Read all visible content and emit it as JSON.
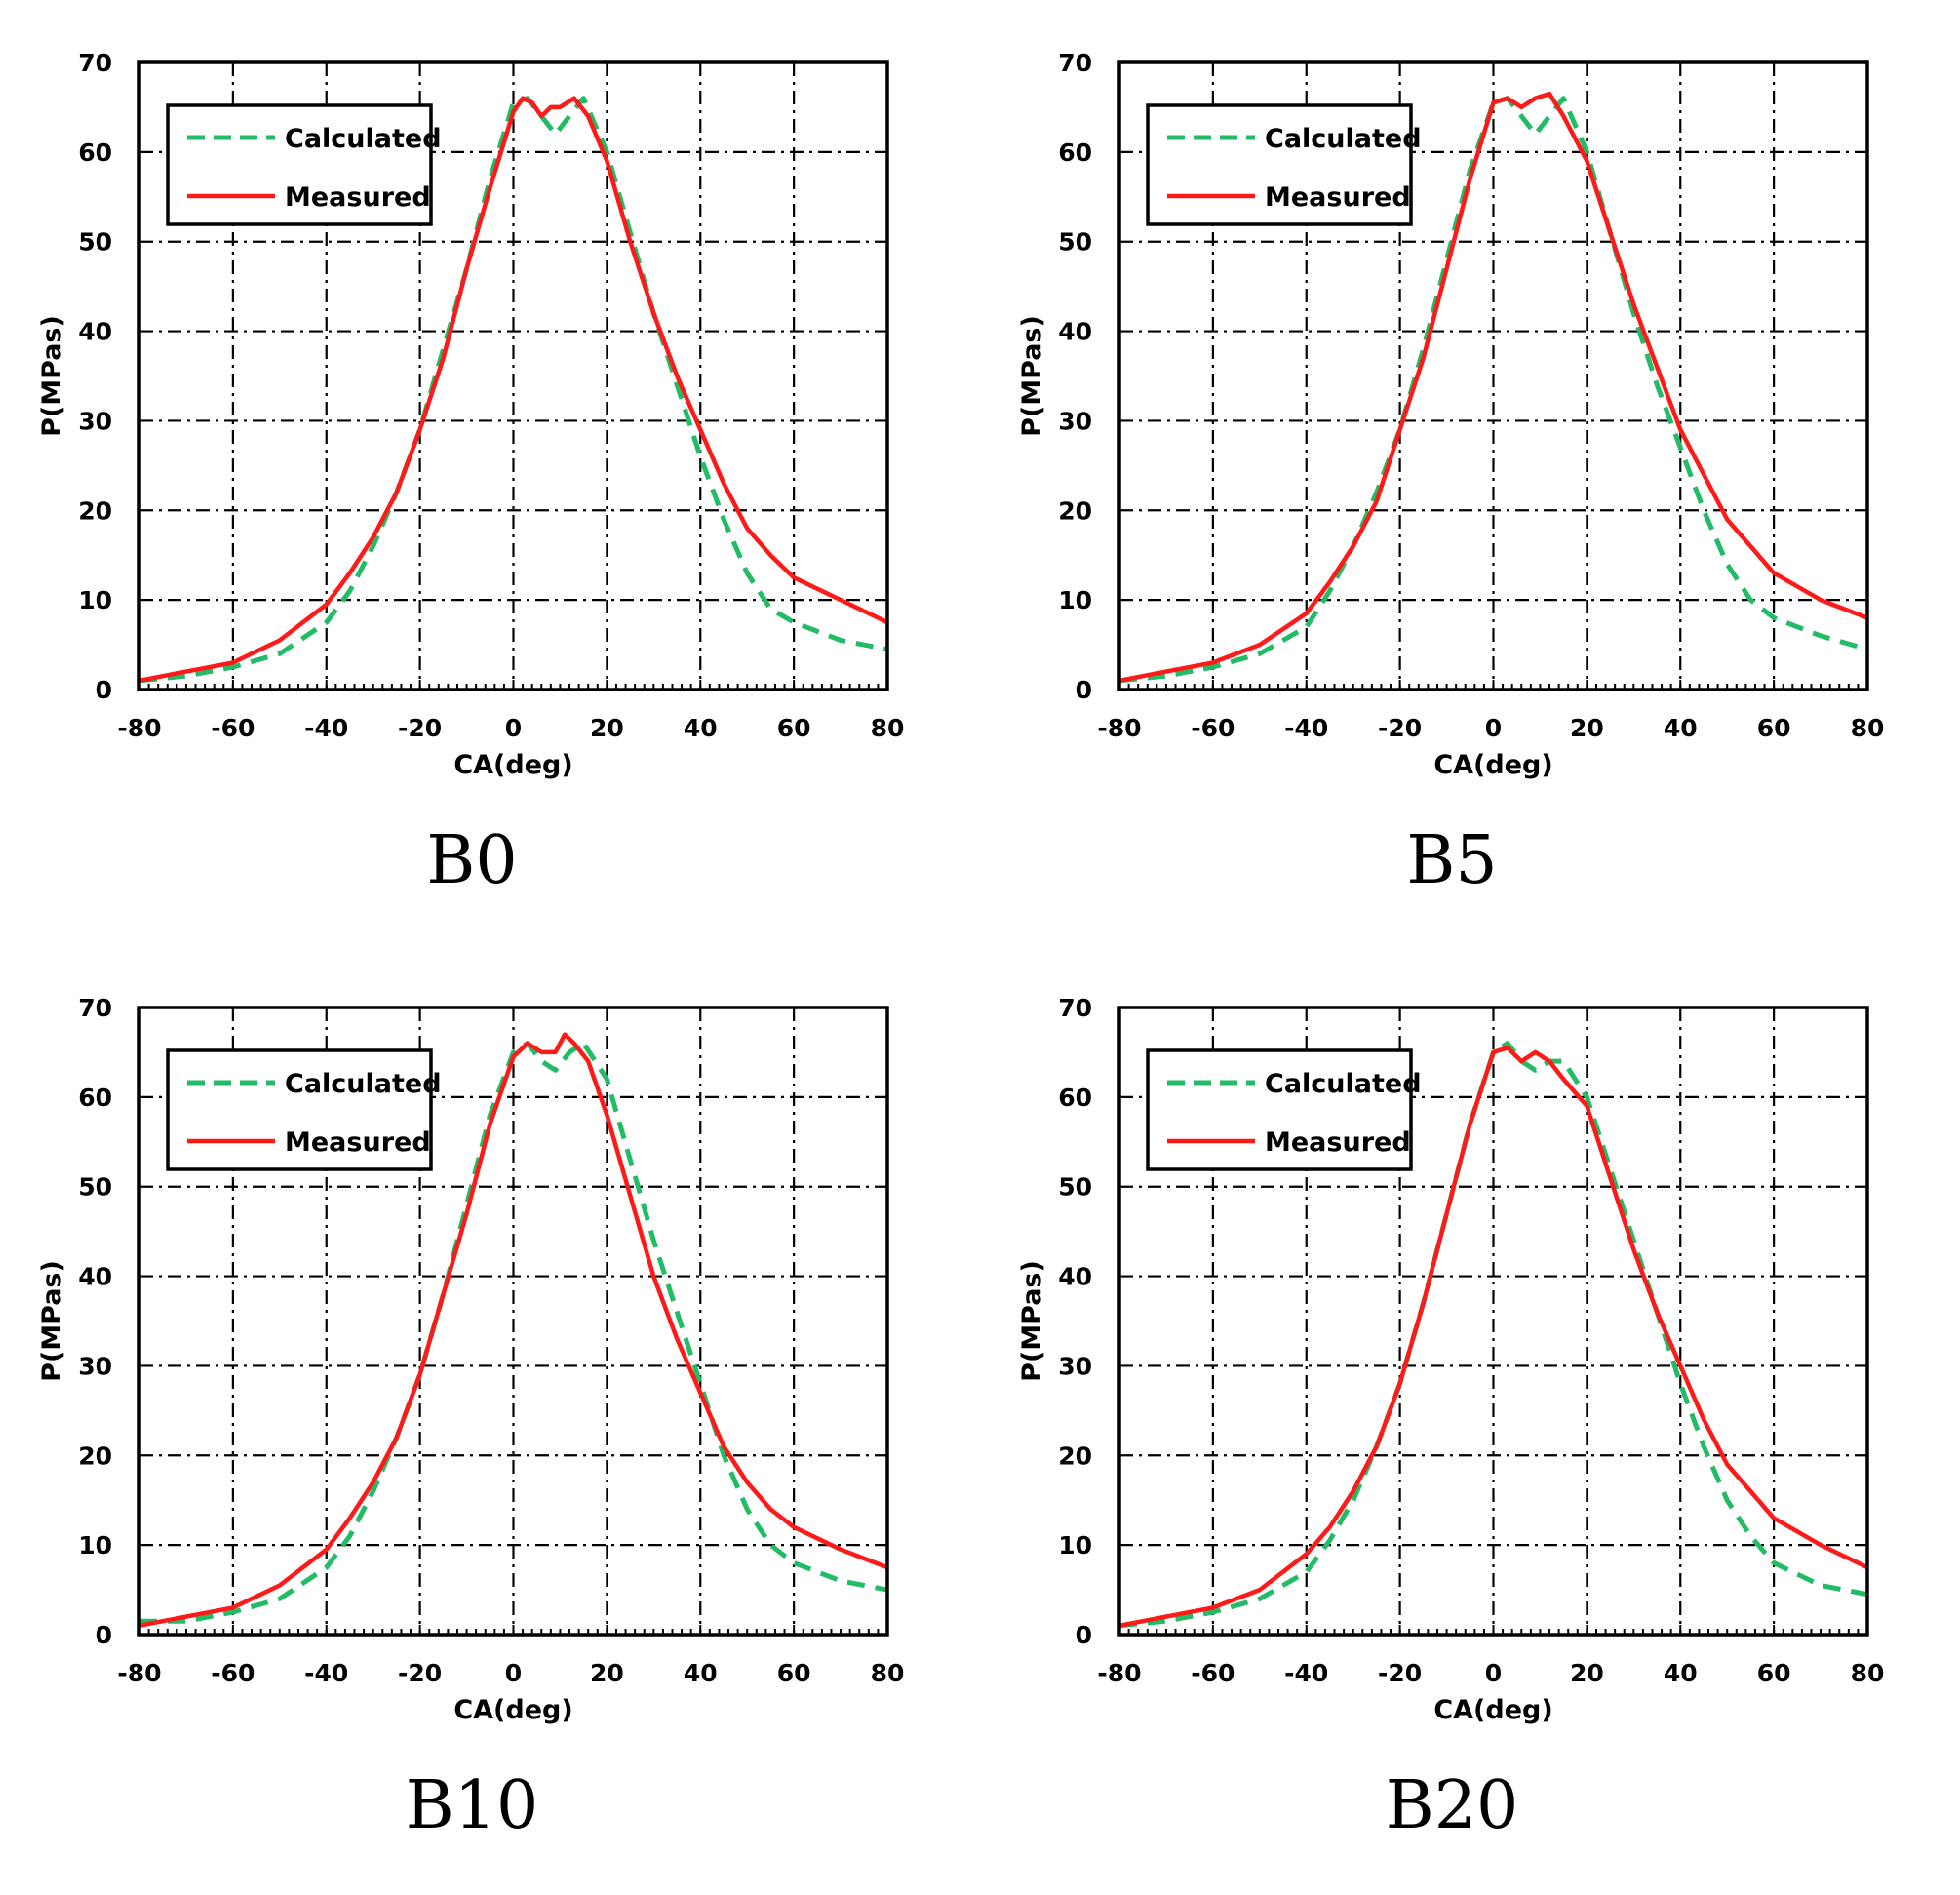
{
  "colors": {
    "calculated": "#22bb66",
    "measured": "#ff1a1a",
    "grid": "#000000"
  },
  "chart_data": [
    {
      "type": "line",
      "caption": "B0",
      "xlabel": "CA(deg)",
      "ylabel": "P(MPas)",
      "xlim": [
        -80,
        80
      ],
      "ylim": [
        0,
        70
      ],
      "x_ticks": [
        "-80",
        "-60",
        "-40",
        "-20",
        "0",
        "20",
        "40",
        "60",
        "80"
      ],
      "y_ticks": [
        "0",
        "10",
        "20",
        "30",
        "40",
        "50",
        "60",
        "70"
      ],
      "grid": true,
      "legend_position": "top-left",
      "series": [
        {
          "name": "Calculated",
          "style": "dashed",
          "x": [
            -80,
            -70,
            -60,
            -50,
            -40,
            -35,
            -30,
            -25,
            -20,
            -15,
            -10,
            -5,
            0,
            3,
            6,
            9,
            12,
            15,
            20,
            25,
            30,
            35,
            40,
            45,
            50,
            55,
            60,
            70,
            80
          ],
          "y": [
            1,
            1.5,
            2.5,
            4,
            7.5,
            11,
            16,
            22,
            29,
            38,
            47,
            57,
            65.5,
            66,
            64,
            62,
            64,
            66,
            60,
            51,
            42,
            34,
            26,
            19,
            13,
            9,
            7.5,
            5.5,
            4.5
          ]
        },
        {
          "name": "Measured",
          "style": "solid",
          "x": [
            -80,
            -70,
            -60,
            -50,
            -40,
            -35,
            -30,
            -25,
            -20,
            -15,
            -10,
            -5,
            0,
            2,
            4,
            6,
            8,
            10,
            13,
            16,
            20,
            25,
            30,
            35,
            40,
            45,
            50,
            55,
            60,
            70,
            80
          ],
          "y": [
            1,
            2,
            3,
            5.5,
            9.5,
            13,
            17,
            22,
            29,
            37,
            47,
            56,
            64.5,
            66,
            65.5,
            64,
            65,
            65,
            66,
            64,
            59,
            50,
            42,
            35,
            29,
            23,
            18,
            15,
            12.5,
            10,
            7.5
          ]
        }
      ]
    },
    {
      "type": "line",
      "caption": "B5",
      "xlabel": "CA(deg)",
      "ylabel": "P(MPas)",
      "xlim": [
        -80,
        80
      ],
      "ylim": [
        0,
        70
      ],
      "x_ticks": [
        "-80",
        "-60",
        "-40",
        "-20",
        "0",
        "20",
        "40",
        "60",
        "80"
      ],
      "y_ticks": [
        "0",
        "10",
        "20",
        "30",
        "40",
        "50",
        "60",
        "70"
      ],
      "grid": true,
      "legend_position": "top-left",
      "series": [
        {
          "name": "Calculated",
          "style": "dashed",
          "x": [
            -80,
            -70,
            -60,
            -50,
            -40,
            -35,
            -30,
            -25,
            -20,
            -15,
            -10,
            -5,
            0,
            3,
            6,
            9,
            12,
            15,
            20,
            25,
            30,
            35,
            40,
            45,
            50,
            55,
            60,
            70,
            80
          ],
          "y": [
            1,
            1.5,
            2.5,
            4,
            7,
            11,
            16,
            22,
            29,
            38,
            48,
            58,
            65.5,
            66,
            64,
            62,
            64,
            66,
            60,
            51,
            42,
            34,
            27,
            20,
            14,
            10,
            8,
            6,
            4.5
          ]
        },
        {
          "name": "Measured",
          "style": "solid",
          "x": [
            -80,
            -70,
            -60,
            -50,
            -40,
            -35,
            -30,
            -25,
            -20,
            -15,
            -10,
            -5,
            0,
            3,
            6,
            9,
            12,
            15,
            20,
            25,
            30,
            35,
            40,
            45,
            50,
            55,
            60,
            70,
            80
          ],
          "y": [
            1,
            2,
            3,
            5,
            8.5,
            12,
            16,
            21,
            29,
            37,
            47,
            57,
            65.5,
            66,
            65,
            66,
            66.5,
            64,
            59,
            51,
            43,
            36,
            29,
            24,
            19,
            16,
            13,
            10,
            8
          ]
        }
      ]
    },
    {
      "type": "line",
      "caption": "B10",
      "xlabel": "CA(deg)",
      "ylabel": "P(MPas)",
      "xlim": [
        -80,
        80
      ],
      "ylim": [
        0,
        70
      ],
      "x_ticks": [
        "-80",
        "-60",
        "-40",
        "-20",
        "0",
        "20",
        "40",
        "60",
        "80"
      ],
      "y_ticks": [
        "0",
        "10",
        "20",
        "30",
        "40",
        "50",
        "60",
        "70"
      ],
      "grid": true,
      "legend_position": "top-left",
      "series": [
        {
          "name": "Calculated",
          "style": "dashed",
          "x": [
            -80,
            -70,
            -60,
            -50,
            -40,
            -35,
            -30,
            -25,
            -20,
            -15,
            -10,
            -5,
            0,
            3,
            6,
            9,
            12,
            15,
            20,
            25,
            30,
            35,
            40,
            45,
            50,
            55,
            60,
            70,
            80
          ],
          "y": [
            1.5,
            1.5,
            2.5,
            4,
            7.5,
            11,
            16,
            22,
            29,
            38,
            48,
            58,
            65,
            66,
            64,
            63,
            65,
            66,
            62,
            53,
            44,
            36,
            28,
            20,
            14,
            10,
            8,
            6,
            5
          ]
        },
        {
          "name": "Measured",
          "style": "solid",
          "x": [
            -80,
            -70,
            -60,
            -50,
            -40,
            -35,
            -30,
            -25,
            -20,
            -15,
            -10,
            -5,
            0,
            3,
            6,
            9,
            11,
            13,
            16,
            20,
            25,
            30,
            35,
            40,
            45,
            50,
            55,
            60,
            70,
            80
          ],
          "y": [
            1,
            2,
            3,
            5.5,
            9.5,
            13,
            17,
            22,
            29,
            38,
            47,
            57,
            64.5,
            66,
            65,
            65,
            67,
            66,
            64,
            58,
            49,
            40,
            33,
            27,
            21,
            17,
            14,
            12,
            9.5,
            7.5
          ]
        }
      ]
    },
    {
      "type": "line",
      "caption": "B20",
      "xlabel": "CA(deg)",
      "ylabel": "P(MPas)",
      "xlim": [
        -80,
        80
      ],
      "ylim": [
        0,
        70
      ],
      "x_ticks": [
        "-80",
        "-60",
        "-40",
        "-20",
        "0",
        "20",
        "40",
        "60",
        "80"
      ],
      "y_ticks": [
        "0",
        "10",
        "20",
        "30",
        "40",
        "50",
        "60",
        "70"
      ],
      "grid": true,
      "legend_position": "top-left",
      "series": [
        {
          "name": "Calculated",
          "style": "dashed",
          "x": [
            -80,
            -70,
            -60,
            -50,
            -40,
            -35,
            -30,
            -25,
            -20,
            -15,
            -10,
            -5,
            0,
            3,
            6,
            9,
            12,
            15,
            20,
            25,
            30,
            35,
            40,
            45,
            50,
            55,
            60,
            70,
            80
          ],
          "y": [
            1,
            1.5,
            2.5,
            4,
            7,
            10.5,
            15,
            21,
            28,
            37,
            47,
            57,
            65,
            66,
            64,
            63,
            64,
            64,
            60,
            52,
            44,
            36,
            28,
            21,
            15,
            11,
            8,
            5.5,
            4.5
          ]
        },
        {
          "name": "Measured",
          "style": "solid",
          "x": [
            -80,
            -70,
            -60,
            -50,
            -40,
            -35,
            -30,
            -25,
            -20,
            -15,
            -10,
            -5,
            0,
            3,
            6,
            9,
            12,
            15,
            20,
            25,
            30,
            35,
            40,
            45,
            50,
            55,
            60,
            70,
            80
          ],
          "y": [
            1,
            2,
            3,
            5,
            9,
            12,
            16,
            21,
            28,
            37,
            47,
            57,
            65,
            65.5,
            64,
            65,
            64,
            62,
            59,
            51,
            43,
            36,
            30,
            24,
            19,
            16,
            13,
            10,
            7.5
          ]
        }
      ]
    }
  ]
}
